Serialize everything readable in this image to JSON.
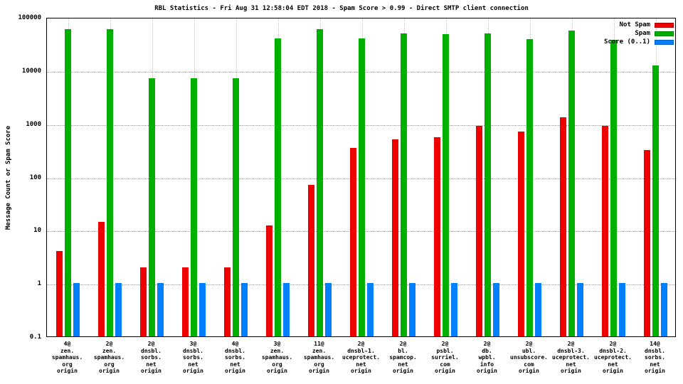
{
  "title": "RBL Statistics - Fri Aug 31 12:58:04 EDT 2018 - Spam Score > 0.99 - Direct SMTP client connection",
  "ylabel": "Message Count or Spam Score",
  "legend": {
    "entries": [
      {
        "label": "Not Spam",
        "color": "#ee0000"
      },
      {
        "label": "Spam",
        "color": "#00b000"
      },
      {
        "label": "Score (0..1)",
        "color": "#0080ff"
      }
    ]
  },
  "chart_data": {
    "type": "bar",
    "scale": "log",
    "title": "RBL Statistics - Fri Aug 31 12:58:04 EDT 2018 - Spam Score > 0.99 - Direct SMTP client connection",
    "xlabel": "",
    "ylabel": "Message Count or Spam Score",
    "ylim": [
      0.1,
      100000
    ],
    "y_ticks": [
      0.1,
      1,
      10,
      100,
      1000,
      10000,
      100000
    ],
    "grid": true,
    "legend_position": "top-right",
    "categories": [
      [
        "4@",
        "zen.",
        "spamhaus.",
        "org",
        "origin"
      ],
      [
        "2@",
        "zen.",
        "spamhaus.",
        "org",
        "origin"
      ],
      [
        "2@",
        "dnsbl.",
        "sorbs.",
        "net",
        "origin"
      ],
      [
        "3@",
        "dnsbl.",
        "sorbs.",
        "net",
        "origin"
      ],
      [
        "4@",
        "dnsbl.",
        "sorbs.",
        "net",
        "origin"
      ],
      [
        "3@",
        "zen.",
        "spamhaus.",
        "org",
        "origin"
      ],
      [
        "11@",
        "zen.",
        "spamhaus.",
        "org",
        "origin"
      ],
      [
        "2@",
        "dnsbl-1.",
        "uceprotect.",
        "net",
        "origin"
      ],
      [
        "2@",
        "bl.",
        "spamcop.",
        "net",
        "origin"
      ],
      [
        "2@",
        "psbl.",
        "surriel.",
        "com",
        "origin"
      ],
      [
        "2@",
        "db.",
        "wpbl.",
        "info",
        "origin"
      ],
      [
        "2@",
        "ubl.",
        "unsubscore.",
        "com",
        "origin"
      ],
      [
        "2@",
        "dnsbl-3.",
        "uceprotect.",
        "net",
        "origin"
      ],
      [
        "2@",
        "dnsbl-2.",
        "uceprotect.",
        "net",
        "origin"
      ],
      [
        "14@",
        "dnsbl.",
        "sorbs.",
        "net",
        "origin"
      ]
    ],
    "series": [
      {
        "name": "Not Spam",
        "color": "#ee0000",
        "values": [
          4,
          14,
          2,
          2,
          2,
          12,
          70,
          350,
          500,
          550,
          900,
          700,
          1300,
          900,
          320
        ]
      },
      {
        "name": "Spam",
        "color": "#00b000",
        "values": [
          60000,
          60000,
          7000,
          7000,
          7000,
          40000,
          60000,
          40000,
          50000,
          48000,
          50000,
          38000,
          55000,
          37000,
          12500
        ]
      },
      {
        "name": "Score (0..1)",
        "color": "#0080ff",
        "values": [
          1,
          1,
          1,
          1,
          1,
          1,
          1,
          1,
          1,
          1,
          1,
          1,
          1,
          1,
          1
        ]
      }
    ]
  }
}
